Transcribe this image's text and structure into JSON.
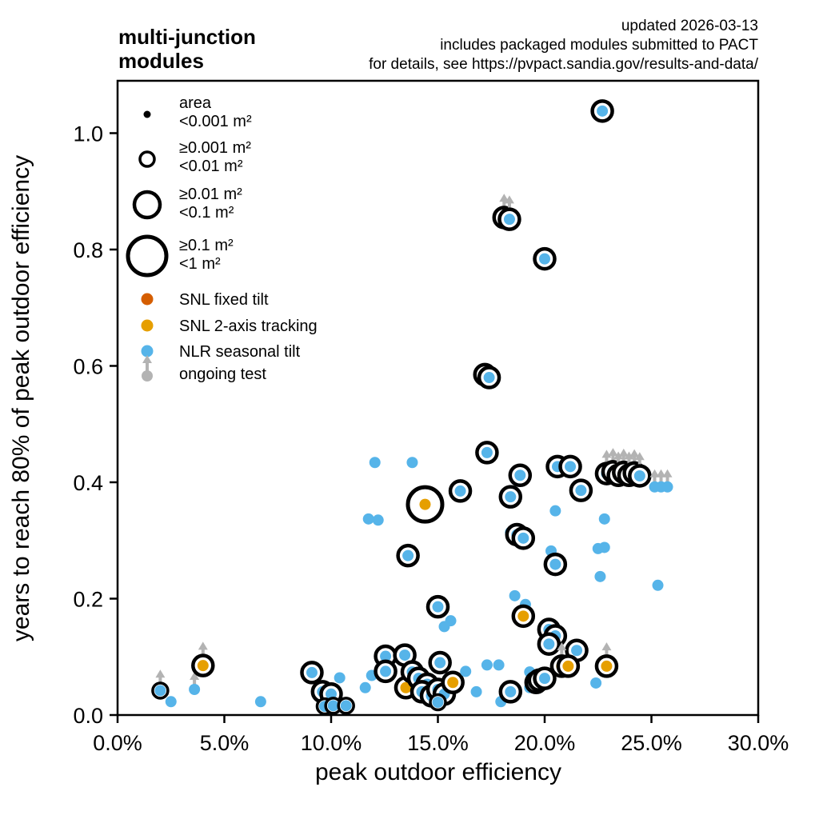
{
  "header": {
    "title_line1": "multi-junction",
    "title_line2": "modules",
    "note_line1": "updated 2026-03-13",
    "note_line2": "includes packaged modules submitted to PACT",
    "note_line3": "for details, see https://pvpact.sandia.gov/results-and-data/"
  },
  "chart_data": {
    "type": "scatter",
    "title": "multi-junction modules",
    "xlabel": "peak outdoor efficiency",
    "ylabel": "years to reach 80% of peak outdoor efficiency",
    "xlim": [
      0,
      30
    ],
    "ylim": [
      0,
      1.09
    ],
    "grid": false,
    "legend_position": "upper left inside plot",
    "x_ticks": [
      "0.0%",
      "5.0%",
      "10.0%",
      "15.0%",
      "20.0%",
      "25.0%",
      "30.0%"
    ],
    "x_tick_values": [
      0,
      5,
      10,
      15,
      20,
      25,
      30
    ],
    "y_ticks": [
      "0.0",
      "0.2",
      "0.4",
      "0.6",
      "0.8",
      "1.0"
    ],
    "y_tick_values": [
      0,
      0.2,
      0.4,
      0.6,
      0.8,
      1.0
    ],
    "colors": {
      "snl_fixed": "#d55e00",
      "snl_2axis": "#e69f00",
      "nlr": "#56b4e9",
      "ongoing": "#b3b3b3",
      "ring": "#000000"
    },
    "size_legend": [
      {
        "label_line1": "area",
        "label_line2": "<0.001 m²",
        "size_class": 1
      },
      {
        "label_line1": "≥0.001 m²",
        "label_line2": "<0.01 m²",
        "size_class": 2
      },
      {
        "label_line1": "≥0.01 m²",
        "label_line2": "<0.1 m²",
        "size_class": 3
      },
      {
        "label_line1": "≥0.1 m²",
        "label_line2": "<1 m²",
        "size_class": 4
      }
    ],
    "color_legend": [
      {
        "label": "SNL fixed tilt",
        "key": "snl_fixed"
      },
      {
        "label": "SNL 2-axis tracking",
        "key": "snl_2axis"
      },
      {
        "label": "NLR seasonal tilt",
        "key": "nlr"
      },
      {
        "label": "ongoing test",
        "key": "ongoing",
        "marker": "arrow"
      }
    ],
    "points": [
      {
        "x": 2.0,
        "y": 0.042,
        "color": "nlr",
        "size": 2,
        "ongoing": true
      },
      {
        "x": 2.5,
        "y": 0.023,
        "color": "nlr",
        "size": 1
      },
      {
        "x": 3.6,
        "y": 0.044,
        "color": "nlr",
        "size": 1,
        "ongoing": true
      },
      {
        "x": 4.0,
        "y": 0.085,
        "color": "snl_2axis",
        "size": 3,
        "ongoing": true
      },
      {
        "x": 6.7,
        "y": 0.023,
        "color": "nlr",
        "size": 1
      },
      {
        "x": 9.1,
        "y": 0.073,
        "color": "nlr",
        "size": 3
      },
      {
        "x": 9.6,
        "y": 0.04,
        "color": "nlr",
        "size": 3
      },
      {
        "x": 10.0,
        "y": 0.036,
        "color": "nlr",
        "size": 3
      },
      {
        "x": 9.7,
        "y": 0.015,
        "color": "nlr",
        "size": 2
      },
      {
        "x": 10.1,
        "y": 0.016,
        "color": "nlr",
        "size": 2
      },
      {
        "x": 10.7,
        "y": 0.016,
        "color": "nlr",
        "size": 2
      },
      {
        "x": 10.4,
        "y": 0.064,
        "color": "nlr",
        "size": 1
      },
      {
        "x": 11.6,
        "y": 0.047,
        "color": "nlr",
        "size": 1
      },
      {
        "x": 11.9,
        "y": 0.068,
        "color": "nlr",
        "size": 1
      },
      {
        "x": 12.55,
        "y": 0.101,
        "color": "nlr",
        "size": 3
      },
      {
        "x": 12.55,
        "y": 0.075,
        "color": "nlr",
        "size": 3
      },
      {
        "x": 13.45,
        "y": 0.103,
        "color": "nlr",
        "size": 3
      },
      {
        "x": 13.5,
        "y": 0.047,
        "color": "snl_2axis",
        "size": 3
      },
      {
        "x": 13.8,
        "y": 0.074,
        "color": "nlr",
        "size": 3
      },
      {
        "x": 14.1,
        "y": 0.063,
        "color": "nlr",
        "size": 3
      },
      {
        "x": 14.5,
        "y": 0.053,
        "color": "nlr",
        "size": 3
      },
      {
        "x": 14.25,
        "y": 0.04,
        "color": "nlr",
        "size": 3
      },
      {
        "x": 14.7,
        "y": 0.033,
        "color": "nlr",
        "size": 3
      },
      {
        "x": 15.0,
        "y": 0.044,
        "color": "nlr",
        "size": 3
      },
      {
        "x": 15.3,
        "y": 0.036,
        "color": "nlr",
        "size": 3
      },
      {
        "x": 15.0,
        "y": 0.022,
        "color": "nlr",
        "size": 2
      },
      {
        "x": 15.1,
        "y": 0.09,
        "color": "nlr",
        "size": 3
      },
      {
        "x": 15.7,
        "y": 0.056,
        "color": "snl_2axis",
        "size": 3
      },
      {
        "x": 16.3,
        "y": 0.075,
        "color": "nlr",
        "size": 1
      },
      {
        "x": 16.8,
        "y": 0.04,
        "color": "nlr",
        "size": 1
      },
      {
        "x": 15.0,
        "y": 0.186,
        "color": "nlr",
        "size": 3
      },
      {
        "x": 15.6,
        "y": 0.162,
        "color": "nlr",
        "size": 1
      },
      {
        "x": 15.3,
        "y": 0.152,
        "color": "nlr",
        "size": 1
      },
      {
        "x": 17.3,
        "y": 0.086,
        "color": "nlr",
        "size": 1
      },
      {
        "x": 17.85,
        "y": 0.086,
        "color": "nlr",
        "size": 1
      },
      {
        "x": 17.95,
        "y": 0.023,
        "color": "nlr",
        "size": 1
      },
      {
        "x": 18.4,
        "y": 0.04,
        "color": "nlr",
        "size": 3
      },
      {
        "x": 18.6,
        "y": 0.205,
        "color": "nlr",
        "size": 1
      },
      {
        "x": 19.1,
        "y": 0.19,
        "color": "nlr",
        "size": 1
      },
      {
        "x": 19.0,
        "y": 0.17,
        "color": "snl_2axis",
        "size": 3
      },
      {
        "x": 19.3,
        "y": 0.074,
        "color": "nlr",
        "size": 1
      },
      {
        "x": 19.3,
        "y": 0.047,
        "color": "nlr",
        "size": 1
      },
      {
        "x": 19.6,
        "y": 0.056,
        "color": "nlr",
        "size": 3
      },
      {
        "x": 19.75,
        "y": 0.06,
        "color": "nlr",
        "size": 3
      },
      {
        "x": 20.0,
        "y": 0.063,
        "color": "nlr",
        "size": 3
      },
      {
        "x": 20.2,
        "y": 0.147,
        "color": "nlr",
        "size": 3
      },
      {
        "x": 20.5,
        "y": 0.136,
        "color": "nlr",
        "size": 3
      },
      {
        "x": 20.2,
        "y": 0.122,
        "color": "nlr",
        "size": 3
      },
      {
        "x": 21.5,
        "y": 0.111,
        "color": "nlr",
        "size": 3
      },
      {
        "x": 20.8,
        "y": 0.084,
        "color": "snl_2axis",
        "size": 3,
        "ongoing": true
      },
      {
        "x": 21.1,
        "y": 0.084,
        "color": "snl_2axis",
        "size": 3
      },
      {
        "x": 22.9,
        "y": 0.084,
        "color": "snl_2axis",
        "size": 3,
        "ongoing": true
      },
      {
        "x": 22.4,
        "y": 0.055,
        "color": "nlr",
        "size": 1
      },
      {
        "x": 12.05,
        "y": 0.434,
        "color": "nlr",
        "size": 1
      },
      {
        "x": 13.8,
        "y": 0.434,
        "color": "nlr",
        "size": 1
      },
      {
        "x": 14.4,
        "y": 0.362,
        "color": "snl_2axis",
        "size": 4
      },
      {
        "x": 11.75,
        "y": 0.337,
        "color": "nlr",
        "size": 1
      },
      {
        "x": 12.2,
        "y": 0.335,
        "color": "nlr",
        "size": 1
      },
      {
        "x": 13.6,
        "y": 0.274,
        "color": "nlr",
        "size": 3
      },
      {
        "x": 16.05,
        "y": 0.385,
        "color": "nlr",
        "size": 3
      },
      {
        "x": 17.3,
        "y": 0.451,
        "color": "nlr",
        "size": 3
      },
      {
        "x": 18.85,
        "y": 0.412,
        "color": "nlr",
        "size": 3
      },
      {
        "x": 18.4,
        "y": 0.375,
        "color": "nlr",
        "size": 3
      },
      {
        "x": 18.4,
        "y": 0.314,
        "color": "nlr",
        "size": 1
      },
      {
        "x": 18.7,
        "y": 0.31,
        "color": "nlr",
        "size": 3
      },
      {
        "x": 19.0,
        "y": 0.304,
        "color": "nlr",
        "size": 3
      },
      {
        "x": 20.6,
        "y": 0.427,
        "color": "nlr",
        "size": 3
      },
      {
        "x": 21.2,
        "y": 0.427,
        "color": "nlr",
        "size": 3
      },
      {
        "x": 21.7,
        "y": 0.386,
        "color": "nlr",
        "size": 3
      },
      {
        "x": 20.5,
        "y": 0.351,
        "color": "nlr",
        "size": 1
      },
      {
        "x": 20.3,
        "y": 0.282,
        "color": "nlr",
        "size": 1
      },
      {
        "x": 20.5,
        "y": 0.259,
        "color": "nlr",
        "size": 3
      },
      {
        "x": 22.8,
        "y": 0.337,
        "color": "nlr",
        "size": 1
      },
      {
        "x": 22.5,
        "y": 0.286,
        "color": "nlr",
        "size": 1
      },
      {
        "x": 22.8,
        "y": 0.288,
        "color": "nlr",
        "size": 1
      },
      {
        "x": 22.6,
        "y": 0.238,
        "color": "nlr",
        "size": 1
      },
      {
        "x": 25.3,
        "y": 0.223,
        "color": "nlr",
        "size": 1
      },
      {
        "x": 22.9,
        "y": 0.415,
        "color": "nlr",
        "size": 3,
        "ongoing": true
      },
      {
        "x": 23.2,
        "y": 0.418,
        "color": "nlr",
        "size": 3,
        "ongoing": true
      },
      {
        "x": 23.45,
        "y": 0.412,
        "color": "nlr",
        "size": 3,
        "ongoing": true
      },
      {
        "x": 23.7,
        "y": 0.417,
        "color": "nlr",
        "size": 3,
        "ongoing": true
      },
      {
        "x": 23.95,
        "y": 0.412,
        "color": "nlr",
        "size": 3,
        "ongoing": true
      },
      {
        "x": 24.2,
        "y": 0.416,
        "color": "nlr",
        "size": 3,
        "ongoing": true
      },
      {
        "x": 24.45,
        "y": 0.411,
        "color": "nlr",
        "size": 3,
        "ongoing": true
      },
      {
        "x": 25.15,
        "y": 0.392,
        "color": "nlr",
        "size": 1,
        "ongoing": true
      },
      {
        "x": 25.45,
        "y": 0.392,
        "color": "nlr",
        "size": 1,
        "ongoing": true
      },
      {
        "x": 25.75,
        "y": 0.392,
        "color": "nlr",
        "size": 1,
        "ongoing": true
      },
      {
        "x": 22.7,
        "y": 1.038,
        "color": "nlr",
        "size": 3
      },
      {
        "x": 18.1,
        "y": 0.855,
        "color": "nlr",
        "size": 3,
        "ongoing": true
      },
      {
        "x": 18.35,
        "y": 0.852,
        "color": "nlr",
        "size": 3,
        "ongoing": true
      },
      {
        "x": 20.0,
        "y": 0.784,
        "color": "nlr",
        "size": 3
      },
      {
        "x": 17.2,
        "y": 0.585,
        "color": "nlr",
        "size": 3
      },
      {
        "x": 17.4,
        "y": 0.58,
        "color": "nlr",
        "size": 3
      }
    ]
  }
}
